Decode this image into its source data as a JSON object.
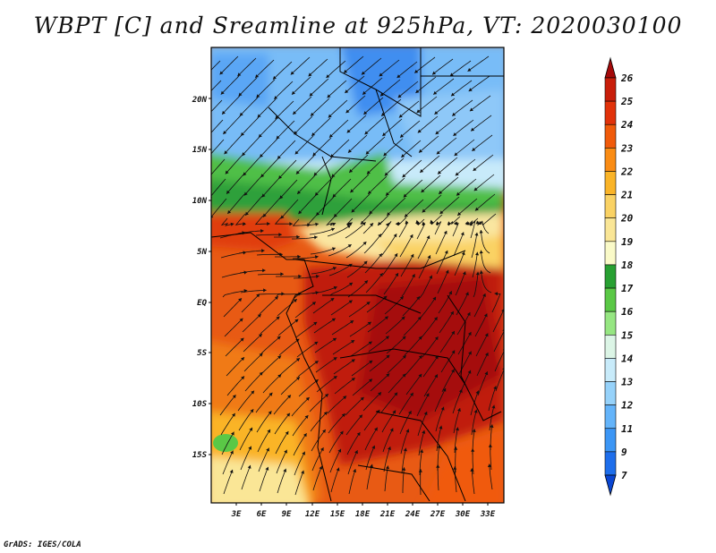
{
  "title": "WBPT [C] and Sreamline at 925hPa, VT: 2020030100",
  "credit": "GrADS: IGES/COLA",
  "map": {
    "lat_labels": [
      "20N",
      "15N",
      "10N",
      "5N",
      "EQ",
      "5S",
      "10S",
      "15S"
    ],
    "lon_labels": [
      "3E",
      "6E",
      "9E",
      "12E",
      "15E",
      "18E",
      "21E",
      "24E",
      "27E",
      "30E",
      "33E"
    ]
  },
  "colorbar": {
    "labels": [
      "26",
      "25",
      "24",
      "23",
      "22",
      "21",
      "20",
      "19",
      "18",
      "17",
      "16",
      "15",
      "14",
      "13",
      "12",
      "11",
      "9",
      "7"
    ],
    "colors": [
      "#a50a0a",
      "#c81e0a",
      "#e1320a",
      "#f05a0a",
      "#fa8c14",
      "#fab428",
      "#fad264",
      "#fae696",
      "#fafac8",
      "#28a032",
      "#5ac846",
      "#96e682",
      "#dcf5e6",
      "#c8ebfa",
      "#96d2fa",
      "#64b4fa",
      "#3c96f5",
      "#1e6eeb",
      "#0a46d2"
    ]
  }
}
